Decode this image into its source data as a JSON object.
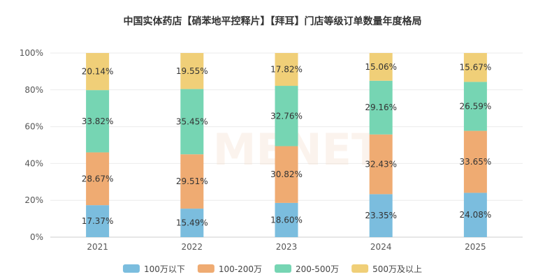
{
  "chart_data": {
    "type": "bar",
    "stacked": true,
    "title": "中国实体药店【硝苯地平控释片】【拜耳】门店等级订单数量年度格局",
    "categories": [
      "2021",
      "2022",
      "2023",
      "2024",
      "2025"
    ],
    "series": [
      {
        "name": "100万以下",
        "color": "#7bbdde",
        "values": [
          17.37,
          15.49,
          18.6,
          23.35,
          24.08
        ],
        "labels": [
          "17.37%",
          "15.49%",
          "18.60%",
          "23.35%",
          "24.08%"
        ]
      },
      {
        "name": "100-200万",
        "color": "#efab72",
        "values": [
          28.67,
          29.51,
          30.82,
          32.43,
          33.65
        ],
        "labels": [
          "28.67%",
          "29.51%",
          "30.82%",
          "32.43%",
          "33.65%"
        ]
      },
      {
        "name": "200-500万",
        "color": "#76d5b3",
        "values": [
          33.82,
          35.45,
          32.76,
          29.16,
          26.59
        ],
        "labels": [
          "33.82%",
          "35.45%",
          "32.76%",
          "29.16%",
          "26.59%"
        ]
      },
      {
        "name": "500万及以上",
        "color": "#f0cf78",
        "values": [
          20.14,
          19.55,
          17.82,
          15.06,
          15.67
        ],
        "labels": [
          "20.14%",
          "19.55%",
          "17.82%",
          "15.06%",
          "15.67%"
        ]
      }
    ],
    "ylim": [
      0,
      100
    ],
    "yticks": [
      "0%",
      "20%",
      "40%",
      "60%",
      "80%",
      "100%"
    ],
    "grid": true,
    "legend": "bottom",
    "watermark": "MENET"
  }
}
